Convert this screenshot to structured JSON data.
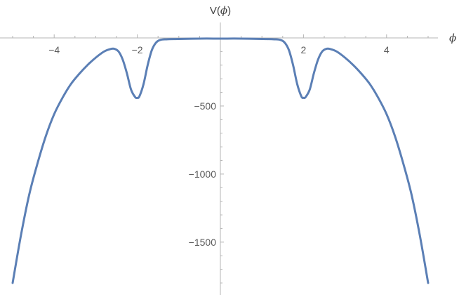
{
  "chart_data": {
    "type": "line",
    "title": "",
    "xlabel_text": "ϕ",
    "ylabel_prefix": "V(",
    "ylabel_symbol": "ϕ",
    "ylabel_suffix": ")",
    "xlim": [
      -5.2,
      5.2
    ],
    "ylim": [
      -1850,
      40
    ],
    "x_ticks": [
      -4,
      -2,
      2,
      4
    ],
    "x_tick_labels": [
      "−4",
      "−2",
      "2",
      "4"
    ],
    "y_ticks": [
      -500,
      -1000,
      -1500
    ],
    "y_tick_labels": [
      "−500",
      "−1000",
      "−1500"
    ],
    "x_minor_step": 0.5,
    "y_minor_step": 100,
    "grid": false,
    "series": [
      {
        "color": "#5b7fb5",
        "x": [
          -5.0,
          -4.8,
          -4.6,
          -4.4,
          -4.2,
          -4.0,
          -3.8,
          -3.6,
          -3.4,
          -3.2,
          -3.0,
          -2.8,
          -2.65,
          -2.55,
          -2.45,
          -2.35,
          -2.25,
          -2.15,
          -2.05,
          -2.0,
          -1.95,
          -1.85,
          -1.75,
          -1.65,
          -1.55,
          -1.45,
          -1.3,
          -1.0,
          -0.5,
          0.0,
          0.5,
          1.0,
          1.3,
          1.45,
          1.55,
          1.65,
          1.75,
          1.85,
          1.95,
          2.0,
          2.05,
          2.15,
          2.25,
          2.35,
          2.45,
          2.55,
          2.65,
          2.8,
          3.0,
          3.2,
          3.4,
          3.6,
          3.8,
          4.0,
          4.2,
          4.4,
          4.6,
          4.8,
          5.0
        ],
        "y": [
          -1800,
          -1450,
          -1150,
          -920,
          -720,
          -560,
          -440,
          -340,
          -265,
          -200,
          -145,
          -100,
          -82,
          -80,
          -100,
          -160,
          -260,
          -380,
          -435,
          -440,
          -430,
          -340,
          -200,
          -90,
          -35,
          -15,
          -10,
          -8,
          -5,
          -5,
          -5,
          -8,
          -10,
          -15,
          -35,
          -90,
          -200,
          -340,
          -430,
          -440,
          -435,
          -380,
          -260,
          -160,
          -100,
          -80,
          -82,
          -100,
          -145,
          -200,
          -265,
          -340,
          -440,
          -560,
          -720,
          -920,
          -1150,
          -1450,
          -1800
        ]
      }
    ]
  }
}
